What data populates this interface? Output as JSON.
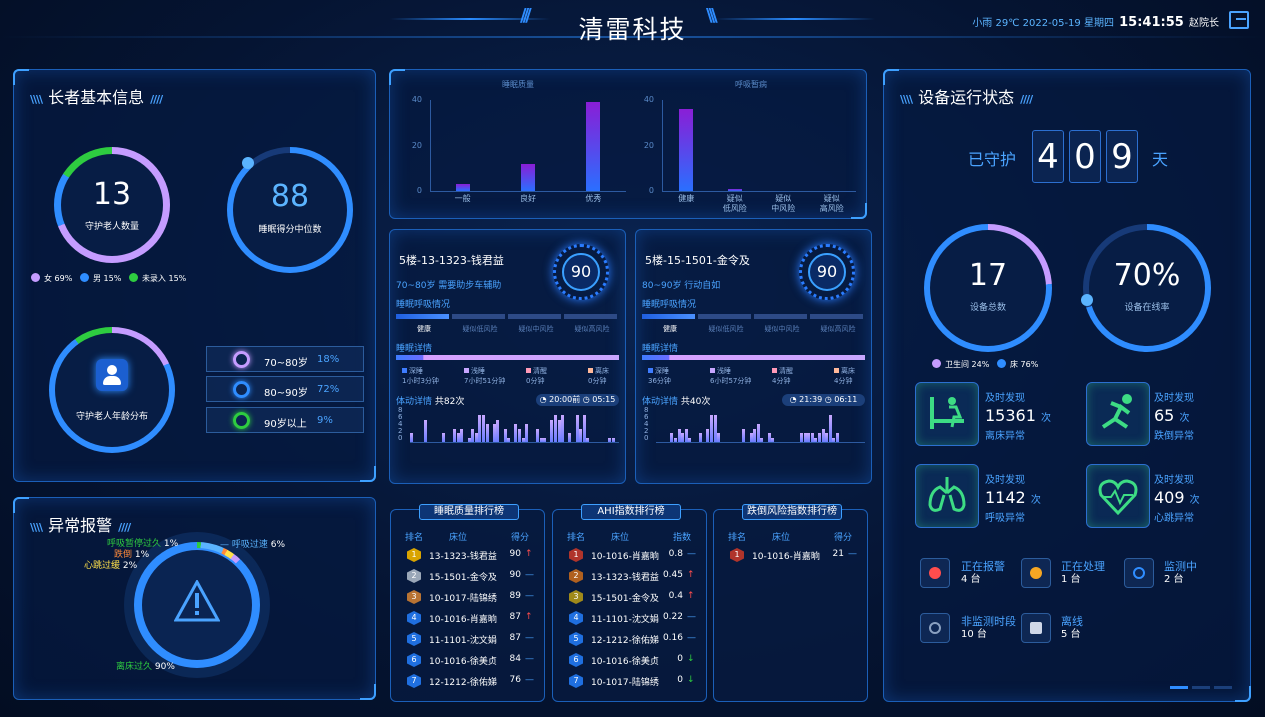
{
  "header": {
    "title": "清雷科技",
    "weather": "小雨",
    "temp": "29℃",
    "date": "2022-05-19 星期四",
    "time": "15:41:55",
    "user": "赵院长"
  },
  "elder_info": {
    "title": "长者基本信息",
    "count": "13",
    "count_label": "守护老人数量",
    "sleep_score": "88",
    "sleep_score_label": "睡眠得分中位数",
    "gender_legend": [
      {
        "label": "女",
        "pct": "69%",
        "color": "#c59cff"
      },
      {
        "label": "男",
        "pct": "15%",
        "color": "#2f8dff"
      },
      {
        "label": "未录入",
        "pct": "15%",
        "color": "#2ecc40"
      }
    ],
    "age_label": "守护老人年龄分布",
    "age_rows": [
      {
        "range": "70~80岁",
        "pct": "18%",
        "color": "#c59cff"
      },
      {
        "range": "80~90岁",
        "pct": "72%",
        "color": "#2f8dff"
      },
      {
        "range": "90岁以上",
        "pct": "9%",
        "color": "#2ecc40"
      }
    ]
  },
  "alarm": {
    "title": "异常报警",
    "items": [
      {
        "label": "呼吸暂停过久",
        "pct": "1%",
        "color": "#2ecc40"
      },
      {
        "label": "呼吸过速",
        "pct": "6%",
        "color": "#5bb4ff"
      },
      {
        "label": "跌倒",
        "pct": "1%",
        "color": "#ff8a3a"
      },
      {
        "label": "心跳过缓",
        "pct": "2%",
        "color": "#ffe14a"
      },
      {
        "label": "离床过久",
        "pct": "90%",
        "color": "#2ecc40"
      }
    ]
  },
  "charts": {
    "y_ticks": [
      "40",
      "20",
      "0"
    ],
    "sleep_quality": {
      "title": "睡眠质量",
      "categories": [
        "一般",
        "良好",
        "优秀"
      ],
      "values": [
        3,
        12,
        39
      ]
    },
    "breathing": {
      "title": "呼吸暂病",
      "categories": [
        "健康",
        "疑似\n低风险",
        "疑似\n中风险",
        "疑似\n高风险"
      ],
      "values": [
        36,
        1,
        0,
        0
      ]
    }
  },
  "cards": [
    {
      "name": "5楼-13-1323-钱君益",
      "info": "70~80岁  需要助步车辅助",
      "score": "90",
      "breath_title": "睡眠呼吸情况",
      "breath_labels": [
        "健康",
        "疑似低风险",
        "疑似中风险",
        "疑似高风险"
      ],
      "sleep_title": "睡眠详情",
      "stats": [
        {
          "k": "深睡",
          "v": "1小时3分钟",
          "c": "#3e7cff"
        },
        {
          "k": "浅睡",
          "v": "7小时51分钟",
          "c": "#c7a6ff"
        },
        {
          "k": "清醒",
          "v": "0分钟",
          "c": "#ff9ab8"
        },
        {
          "k": "离床",
          "v": "0分钟",
          "c": "#ffb89a"
        }
      ],
      "move_title": "体动详情",
      "move_count": "共82次",
      "start": "20:00",
      "end": "05:15",
      "start_prefix": "前",
      "move_bars": [
        2,
        0,
        0,
        0,
        5,
        0,
        0,
        0,
        0,
        2,
        0,
        0,
        3,
        2,
        3,
        0,
        1,
        3,
        2,
        6,
        6,
        4,
        0,
        4,
        5,
        0,
        3,
        1,
        0,
        4,
        3,
        1,
        4,
        0,
        0,
        3,
        1,
        1,
        0,
        5,
        6,
        5,
        6,
        0,
        2,
        0,
        6,
        3,
        6,
        1,
        0,
        0,
        0,
        0,
        0,
        1,
        1
      ]
    },
    {
      "name": "5楼-15-1501-金令及",
      "info": "80~90岁  行动自如",
      "score": "90",
      "breath_title": "睡眠呼吸情况",
      "breath_labels": [
        "健康",
        "疑似低风险",
        "疑似中风险",
        "疑似高风险"
      ],
      "sleep_title": "睡眠详情",
      "stats": [
        {
          "k": "深睡",
          "v": "36分钟",
          "c": "#3e7cff"
        },
        {
          "k": "浅睡",
          "v": "6小时57分钟",
          "c": "#c7a6ff"
        },
        {
          "k": "清醒",
          "v": "4分钟",
          "c": "#ff9ab8"
        },
        {
          "k": "离床",
          "v": "4分钟",
          "c": "#ffb89a"
        }
      ],
      "move_title": "体动详情",
      "move_count": "共40次",
      "start": "21:39",
      "end": "06:11",
      "start_prefix": "",
      "move_bars": [
        0,
        0,
        0,
        0,
        2,
        1,
        3,
        2,
        3,
        1,
        0,
        0,
        2,
        0,
        3,
        6,
        6,
        2,
        0,
        0,
        0,
        0,
        0,
        0,
        3,
        0,
        2,
        3,
        4,
        1,
        0,
        2,
        1,
        0,
        0,
        0,
        0,
        0,
        0,
        0,
        2,
        2,
        2,
        2,
        1,
        2,
        3,
        2,
        6,
        1,
        2,
        0,
        0,
        0,
        0,
        0,
        0
      ]
    }
  ],
  "rankings": [
    {
      "title": "睡眠质量排行榜",
      "headers": [
        "排名",
        "床位",
        "得分"
      ],
      "rows": [
        {
          "no": "1",
          "bed": "13-1323-钱君益",
          "score": "90",
          "trend": "↑",
          "tc": "#ff4d4d",
          "badge": "#d9a400"
        },
        {
          "no": "2",
          "bed": "15-1501-金令及",
          "score": "90",
          "trend": "—",
          "tc": "#4aa3ff",
          "badge": "#9aa7b8"
        },
        {
          "no": "3",
          "bed": "10-1017-陆锦绣",
          "score": "89",
          "trend": "—",
          "tc": "#4aa3ff",
          "badge": "#b87333"
        },
        {
          "no": "4",
          "bed": "10-1016-肖嘉晌",
          "score": "87",
          "trend": "↑",
          "tc": "#ff4d4d",
          "badge": "#1f6fe0"
        },
        {
          "no": "5",
          "bed": "11-1101-沈文娟",
          "score": "87",
          "trend": "—",
          "tc": "#4aa3ff",
          "badge": "#1f6fe0"
        },
        {
          "no": "6",
          "bed": "10-1016-徐美贞",
          "score": "84",
          "trend": "—",
          "tc": "#4aa3ff",
          "badge": "#1f6fe0"
        },
        {
          "no": "7",
          "bed": "12-1212-徐佑娣",
          "score": "76",
          "trend": "—",
          "tc": "#4aa3ff",
          "badge": "#1f6fe0"
        }
      ]
    },
    {
      "title": "AHI指数排行榜",
      "headers": [
        "排名",
        "床位",
        "指数"
      ],
      "rows": [
        {
          "no": "1",
          "bed": "10-1016-肖嘉晌",
          "score": "0.8",
          "trend": "—",
          "tc": "#4aa3ff",
          "badge": "#b0342b"
        },
        {
          "no": "2",
          "bed": "13-1323-钱君益",
          "score": "0.45",
          "trend": "↑",
          "tc": "#ff4d4d",
          "badge": "#b0601f"
        },
        {
          "no": "3",
          "bed": "15-1501-金令及",
          "score": "0.4",
          "trend": "↑",
          "tc": "#ff4d4d",
          "badge": "#a08a1a"
        },
        {
          "no": "4",
          "bed": "11-1101-沈文娟",
          "score": "0.22",
          "trend": "—",
          "tc": "#4aa3ff",
          "badge": "#1f6fe0"
        },
        {
          "no": "5",
          "bed": "12-1212-徐佑娣",
          "score": "0.16",
          "trend": "—",
          "tc": "#4aa3ff",
          "badge": "#1f6fe0"
        },
        {
          "no": "6",
          "bed": "10-1016-徐美贞",
          "score": "0",
          "trend": "↓",
          "tc": "#2ecc40",
          "badge": "#1f6fe0"
        },
        {
          "no": "7",
          "bed": "10-1017-陆锦绣",
          "score": "0",
          "trend": "↓",
          "tc": "#2ecc40",
          "badge": "#1f6fe0"
        }
      ]
    },
    {
      "title": "跌倒风险指数排行榜",
      "headers": [
        "排名",
        "床位",
        "得分"
      ],
      "rows": [
        {
          "no": "1",
          "bed": "10-1016-肖嘉晌",
          "score": "21",
          "trend": "—",
          "tc": "#4aa3ff",
          "badge": "#b0342b"
        }
      ]
    }
  ],
  "device": {
    "title": "设备运行状态",
    "guard_prefix": "已守护",
    "digits": [
      "4",
      "0",
      "9"
    ],
    "guard_suffix": "天",
    "total": "17",
    "total_label": "设备总数",
    "online": "70%",
    "online_label": "设备在线率",
    "legend": [
      {
        "label": "卫生间",
        "pct": "24%",
        "color": "#c59cff"
      },
      {
        "label": "床",
        "pct": "76%",
        "color": "#2f8dff"
      }
    ],
    "detections": [
      {
        "head": "及时发现",
        "value": "15361",
        "unit": "次",
        "label": "离床异常",
        "icon": "leave-bed-icon"
      },
      {
        "head": "及时发现",
        "value": "65",
        "unit": "次",
        "label": "跌倒异常",
        "icon": "fall-icon"
      },
      {
        "head": "及时发现",
        "value": "1142",
        "unit": "次",
        "label": "呼吸异常",
        "icon": "lungs-icon"
      },
      {
        "head": "及时发现",
        "value": "409",
        "unit": "次",
        "label": "心跳异常",
        "icon": "heartbeat-icon"
      }
    ],
    "statuses": [
      {
        "label": "正在报警",
        "value": "4 台",
        "color": "#ff4d4d"
      },
      {
        "label": "正在处理",
        "value": "1 台",
        "color": "#f5a623"
      },
      {
        "label": "监测中",
        "value": "2 台",
        "color": "#2f8dff"
      },
      {
        "label": "非监测时段",
        "value": "10 台",
        "color": "#8aa0c0"
      },
      {
        "label": "离线",
        "value": "5 台",
        "color": "#d0d8e8"
      }
    ]
  }
}
